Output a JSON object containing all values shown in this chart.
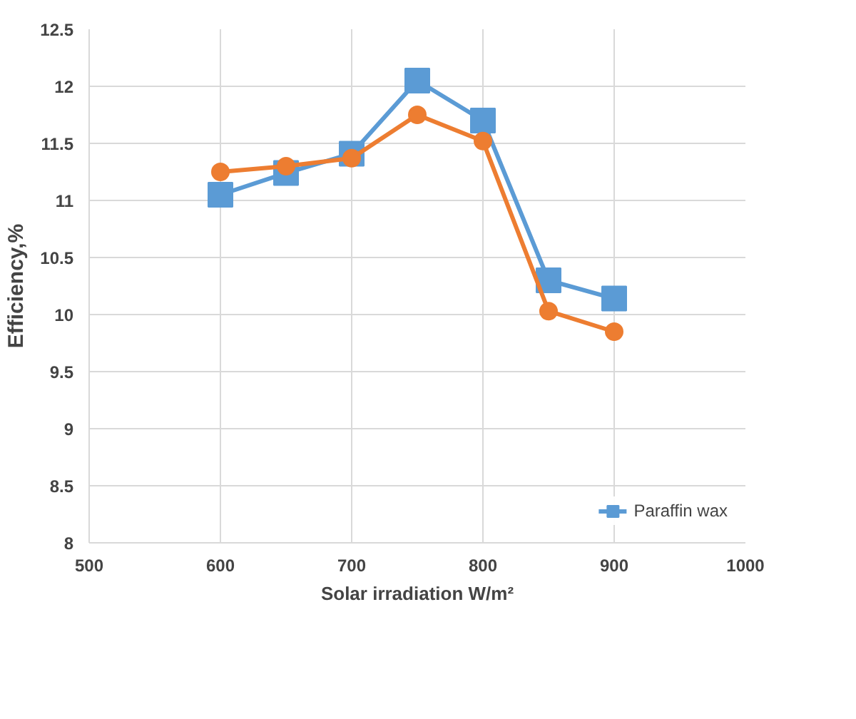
{
  "chart_data": {
    "type": "line",
    "xlabel": "Solar irradiation W/m²",
    "ylabel": "Efficiency,%",
    "x": [
      600,
      650,
      700,
      750,
      800,
      850,
      900
    ],
    "series": [
      {
        "name": "Paraffin wax",
        "color": "#5b9bd5",
        "marker": "square",
        "values": [
          11.05,
          11.24,
          11.41,
          12.05,
          11.7,
          10.3,
          10.14
        ]
      },
      {
        "color": "#ed7d31",
        "marker": "circle",
        "values": [
          11.25,
          11.3,
          11.37,
          11.75,
          11.52,
          10.03,
          9.85
        ]
      }
    ],
    "xlim": [
      500,
      1000
    ],
    "xticks": [
      500,
      600,
      700,
      800,
      900,
      1000
    ],
    "ylim": [
      8,
      12.5
    ],
    "yticks": [
      8,
      8.5,
      9,
      9.5,
      10,
      10.5,
      11,
      11.5,
      12,
      12.5
    ],
    "grid": true,
    "legend": "bottom right",
    "line_style": "solid"
  }
}
